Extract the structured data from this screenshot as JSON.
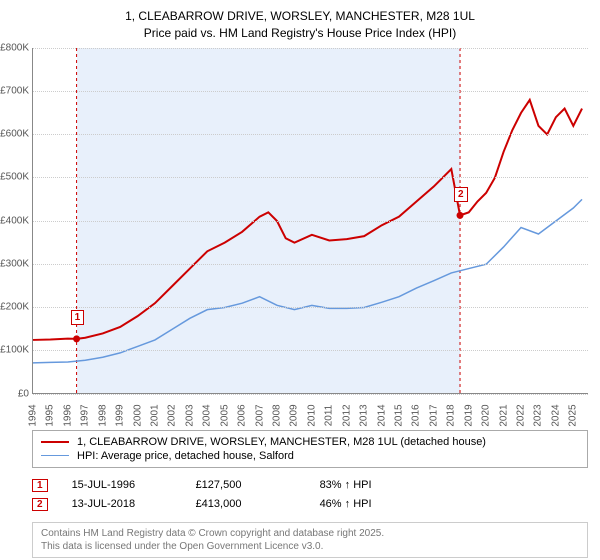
{
  "title": {
    "line1": "1, CLEABARROW DRIVE, WORSLEY, MANCHESTER, M28 1UL",
    "line2": "Price paid vs. HM Land Registry's House Price Index (HPI)"
  },
  "chart": {
    "type": "line",
    "background_color": "#ffffff",
    "shaded_region_color": "#e8f0fb",
    "grid_color": "#cccccc",
    "plot_border_color": "#888888",
    "x_range": [
      1994,
      2025.9
    ],
    "shaded_x_range": [
      1996.5,
      2018.5
    ],
    "y_range": [
      0,
      800
    ],
    "y_ticks": [
      0,
      100,
      200,
      300,
      400,
      500,
      600,
      700,
      800
    ],
    "y_tick_labels": [
      "£0",
      "£100K",
      "£200K",
      "£300K",
      "£400K",
      "£500K",
      "£600K",
      "£700K",
      "£800K"
    ],
    "x_ticks": [
      1994,
      1995,
      1996,
      1997,
      1998,
      1999,
      2000,
      2001,
      2002,
      2003,
      2004,
      2005,
      2006,
      2007,
      2008,
      2009,
      2010,
      2011,
      2012,
      2013,
      2014,
      2015,
      2016,
      2017,
      2018,
      2019,
      2020,
      2021,
      2022,
      2023,
      2024,
      2025
    ],
    "x_tick_labels": [
      "1994",
      "1995",
      "1996",
      "1997",
      "1998",
      "1999",
      "2000",
      "2001",
      "2002",
      "2003",
      "2004",
      "2005",
      "2006",
      "2007",
      "2008",
      "2009",
      "2010",
      "2011",
      "2012",
      "2013",
      "2014",
      "2015",
      "2016",
      "2017",
      "2018",
      "2019",
      "2020",
      "2021",
      "2022",
      "2023",
      "2024",
      "2025"
    ],
    "series": [
      {
        "name": "price_paid",
        "color": "#cc0000",
        "line_width": 2,
        "data": [
          [
            1994,
            125
          ],
          [
            1995,
            126
          ],
          [
            1996,
            128
          ],
          [
            1996.5,
            127.5
          ],
          [
            1997,
            130
          ],
          [
            1998,
            140
          ],
          [
            1999,
            155
          ],
          [
            2000,
            180
          ],
          [
            2001,
            210
          ],
          [
            2002,
            250
          ],
          [
            2003,
            290
          ],
          [
            2004,
            330
          ],
          [
            2005,
            350
          ],
          [
            2006,
            375
          ],
          [
            2007,
            410
          ],
          [
            2007.5,
            420
          ],
          [
            2008,
            400
          ],
          [
            2008.5,
            360
          ],
          [
            2009,
            350
          ],
          [
            2010,
            368
          ],
          [
            2011,
            355
          ],
          [
            2012,
            358
          ],
          [
            2013,
            365
          ],
          [
            2014,
            390
          ],
          [
            2015,
            410
          ],
          [
            2016,
            445
          ],
          [
            2017,
            480
          ],
          [
            2018,
            520
          ],
          [
            2018.5,
            413
          ],
          [
            2019,
            420
          ],
          [
            2019.5,
            445
          ],
          [
            2020,
            465
          ],
          [
            2020.5,
            500
          ],
          [
            2021,
            560
          ],
          [
            2021.5,
            610
          ],
          [
            2022,
            650
          ],
          [
            2022.5,
            680
          ],
          [
            2023,
            620
          ],
          [
            2023.5,
            600
          ],
          [
            2024,
            640
          ],
          [
            2024.5,
            660
          ],
          [
            2025,
            620
          ],
          [
            2025.5,
            660
          ]
        ]
      },
      {
        "name": "hpi",
        "color": "#6699dd",
        "line_width": 1.5,
        "data": [
          [
            1994,
            72
          ],
          [
            1995,
            73
          ],
          [
            1996,
            74
          ],
          [
            1997,
            78
          ],
          [
            1998,
            85
          ],
          [
            1999,
            95
          ],
          [
            2000,
            110
          ],
          [
            2001,
            125
          ],
          [
            2002,
            150
          ],
          [
            2003,
            175
          ],
          [
            2004,
            195
          ],
          [
            2005,
            200
          ],
          [
            2006,
            210
          ],
          [
            2007,
            225
          ],
          [
            2008,
            205
          ],
          [
            2009,
            195
          ],
          [
            2010,
            205
          ],
          [
            2011,
            198
          ],
          [
            2012,
            198
          ],
          [
            2013,
            200
          ],
          [
            2014,
            212
          ],
          [
            2015,
            225
          ],
          [
            2016,
            245
          ],
          [
            2017,
            262
          ],
          [
            2018,
            280
          ],
          [
            2019,
            290
          ],
          [
            2020,
            300
          ],
          [
            2021,
            340
          ],
          [
            2022,
            385
          ],
          [
            2023,
            370
          ],
          [
            2024,
            400
          ],
          [
            2025,
            430
          ],
          [
            2025.5,
            450
          ]
        ]
      }
    ],
    "markers": [
      {
        "id": "1",
        "x": 1996.5,
        "y": 127.5,
        "point_color": "#cc0000"
      },
      {
        "id": "2",
        "x": 2018.5,
        "y": 413,
        "point_color": "#cc0000"
      }
    ]
  },
  "legend": {
    "items": [
      {
        "color": "#cc0000",
        "width": 2,
        "label": "1, CLEABARROW DRIVE, WORSLEY, MANCHESTER, M28 1UL (detached house)"
      },
      {
        "color": "#6699dd",
        "width": 1.5,
        "label": "HPI: Average price, detached house, Salford"
      }
    ]
  },
  "marker_rows": [
    {
      "id": "1",
      "date": "15-JUL-1996",
      "price": "£127,500",
      "change": "83% ↑ HPI"
    },
    {
      "id": "2",
      "date": "13-JUL-2018",
      "price": "£413,000",
      "change": "46% ↑ HPI"
    }
  ],
  "footer": {
    "line1": "Contains HM Land Registry data © Crown copyright and database right 2025.",
    "line2": "This data is licensed under the Open Government Licence v3.0."
  }
}
